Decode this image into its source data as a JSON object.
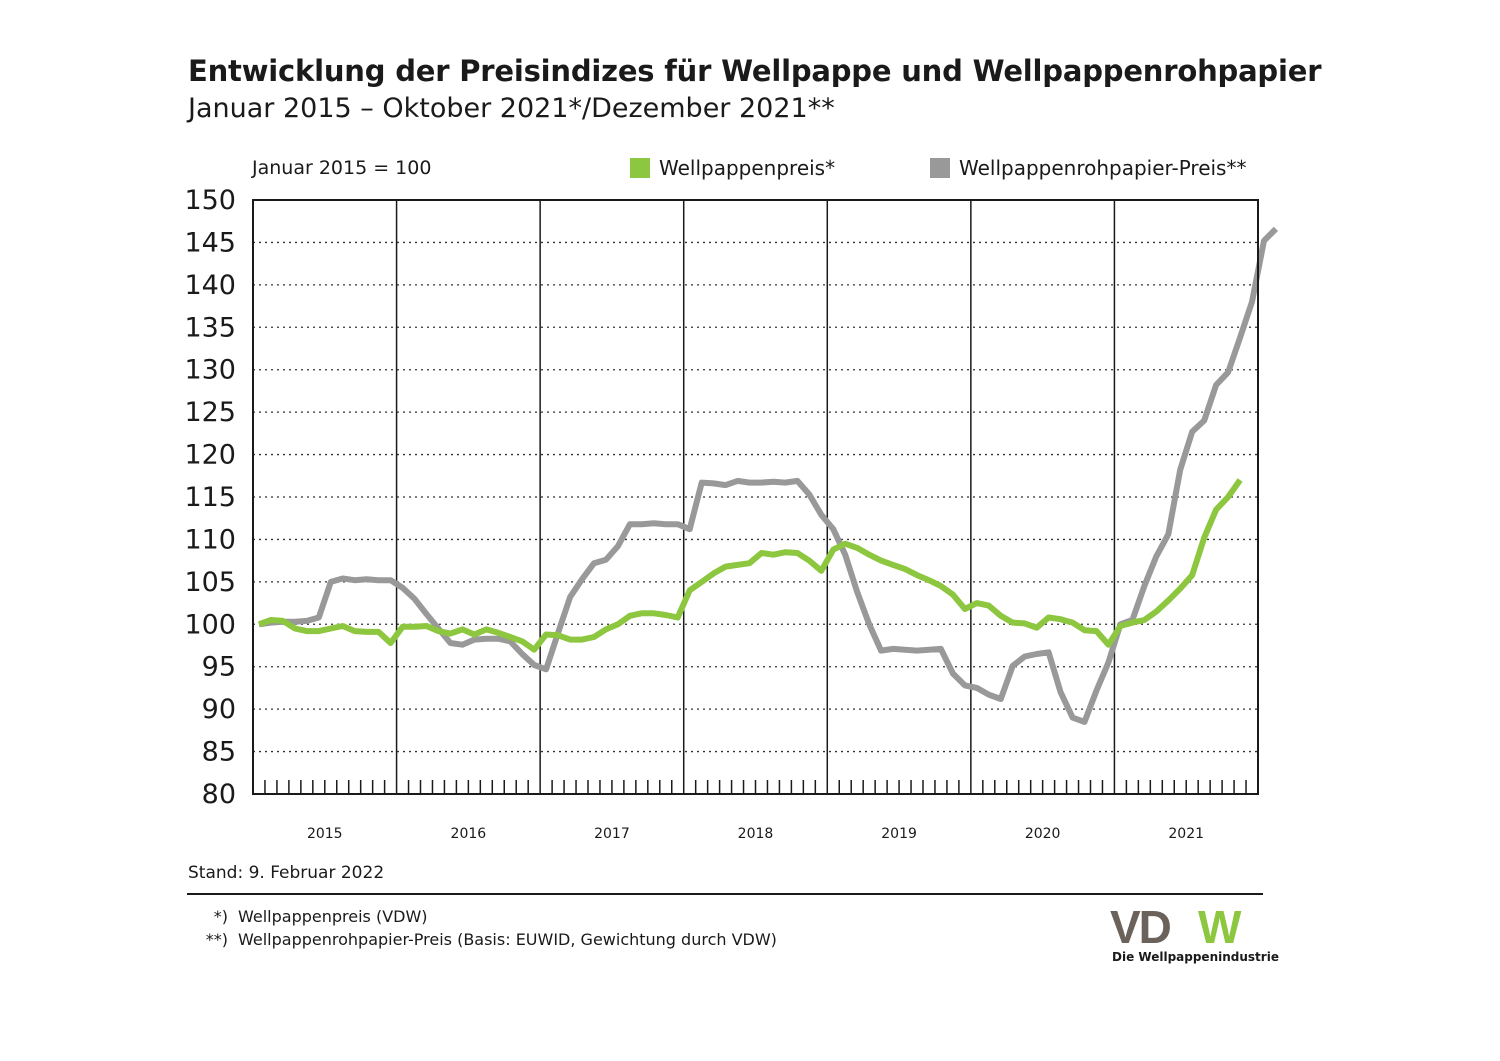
{
  "title": "Entwicklung der Preisindizes für Wellpappe und Wellpappenrohpapier",
  "subtitle": "Januar 2015 – Oktober 2021*/Dezember 2021**",
  "index_note": "Januar 2015 = 100",
  "stand": "Stand: 9. Februar 2022",
  "footnotes": [
    {
      "mark": "*)",
      "text": "Wellpappenpreis (VDW)"
    },
    {
      "mark": "**)",
      "text": "Wellpappenrohpapier-Preis (Basis: EUWID, Gewichtung durch VDW)"
    }
  ],
  "logo": {
    "text": "VDW",
    "tagline": "Die Wellpappenindustrie",
    "colors": {
      "VD": "#6b625c",
      "W": "#8dc63f"
    }
  },
  "chart_data": {
    "type": "line",
    "ylim": [
      80,
      150
    ],
    "yticks": [
      80,
      85,
      90,
      95,
      100,
      105,
      110,
      115,
      120,
      125,
      130,
      135,
      140,
      145,
      150
    ],
    "years": [
      "2015",
      "2016",
      "2017",
      "2018",
      "2019",
      "2020",
      "2021"
    ],
    "grid": "dotted horizontal, solid vertical year separators",
    "legend_position": "top",
    "series": [
      {
        "name": "Wellpappenpreis*",
        "color": "#8dc63f",
        "values": [
          100,
          100.5,
          100.4,
          99.5,
          99.2,
          99.2,
          99.5,
          99.8,
          99.2,
          99.1,
          99.1,
          97.8,
          99.7,
          99.7,
          99.8,
          99.2,
          98.9,
          99.4,
          98.8,
          99.4,
          99.0,
          98.5,
          98.0,
          97.0,
          98.8,
          98.7,
          98.2,
          98.2,
          98.5,
          99.4,
          100.0,
          101.0,
          101.3,
          101.3,
          101.1,
          100.8,
          104.0,
          105.0,
          106.0,
          106.8,
          107.0,
          107.2,
          108.4,
          108.2,
          108.5,
          108.4,
          107.5,
          106.3,
          108.8,
          109.5,
          109.0,
          108.2,
          107.5,
          107.0,
          106.5,
          105.8,
          105.2,
          104.5,
          103.5,
          101.8,
          102.5,
          102.2,
          101.0,
          100.2,
          100.1,
          99.6,
          100.8,
          100.6,
          100.2,
          99.3,
          99.2,
          97.6,
          99.8,
          100.2,
          100.5,
          101.5,
          102.8,
          104.2,
          105.8,
          110.2,
          113.5,
          115.0,
          117.0
        ]
      },
      {
        "name": "Wellpappenrohpapier-Preis**",
        "color": "#999999",
        "values": [
          100,
          100.2,
          100.3,
          100.3,
          100.4,
          100.8,
          105.0,
          105.4,
          105.2,
          105.3,
          105.2,
          105.2,
          104.3,
          103.0,
          101.2,
          99.5,
          97.8,
          97.6,
          98.2,
          98.3,
          98.3,
          98.0,
          96.5,
          95.2,
          94.7,
          99.0,
          103.2,
          105.3,
          107.2,
          107.6,
          109.2,
          111.8,
          111.8,
          111.9,
          111.8,
          111.8,
          111.2,
          116.7,
          116.6,
          116.4,
          116.9,
          116.7,
          116.7,
          116.8,
          116.7,
          116.9,
          115.3,
          112.9,
          111.2,
          108.2,
          103.8,
          100.0,
          96.9,
          97.1,
          97.0,
          96.9,
          97.0,
          97.1,
          94.2,
          92.8,
          92.5,
          91.7,
          91.2,
          95.1,
          96.2,
          96.5,
          96.7,
          92.0,
          89.0,
          88.5,
          92.2,
          95.5,
          100.0,
          100.5,
          104.5,
          108.0,
          110.6,
          118.2,
          122.7,
          124.0,
          128.2,
          129.7,
          133.8,
          138.0,
          145.2,
          146.6
        ]
      }
    ]
  }
}
